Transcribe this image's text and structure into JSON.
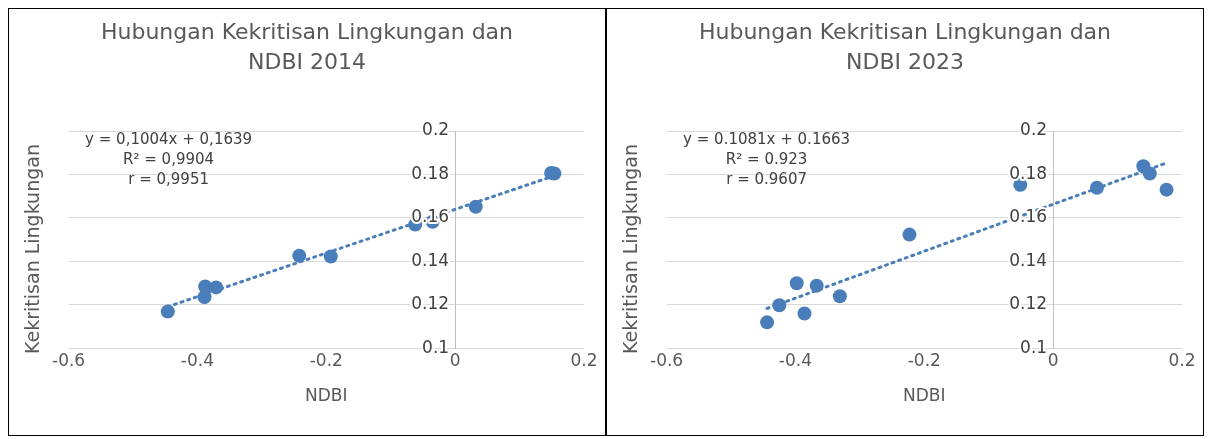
{
  "chart_data": [
    {
      "type": "scatter",
      "title": "Hubungan Kekritisan Lingkungan dan NDBI 2014",
      "xlabel": "NDBI",
      "ylabel": "Kekritisan Lingkungan",
      "annotations": [
        "y = 0,1004x + 0,1639",
        "R² = 0,9904",
        "r = 0,9951"
      ],
      "xlim": [
        -0.6,
        0.2
      ],
      "xticks": [
        -0.6,
        -0.4,
        -0.2,
        0,
        0.2
      ],
      "ylim": [
        0.1,
        0.2
      ],
      "yticks": [
        0.1,
        0.12,
        0.14,
        0.16,
        0.18,
        0.2
      ],
      "grid": "y",
      "legend": false,
      "series": [
        {
          "type": "scatter",
          "color": "#4a7ebb",
          "marker": "circle",
          "x": [
            -0.446,
            -0.388,
            -0.389,
            -0.371,
            -0.242,
            -0.193,
            -0.062,
            -0.035,
            0.032,
            0.149,
            0.154
          ],
          "values": [
            0.1169,
            0.1284,
            0.1235,
            0.128,
            0.1426,
            0.1422,
            0.1569,
            0.1582,
            0.1651,
            0.1807,
            0.1804
          ]
        },
        {
          "type": "line",
          "color": "#4a7ebb",
          "marker": "none",
          "line_style": "dotted",
          "x": [
            -0.446,
            0.154
          ],
          "values": [
            0.1191,
            0.1794
          ]
        }
      ]
    },
    {
      "type": "scatter",
      "title": "Hubungan Kekritisan Lingkungan dan NDBI 2023",
      "xlabel": "NDBI",
      "ylabel": "Kekritisan Lingkungan",
      "annotations": [
        "y = 0.1081x + 0.1663",
        "R² = 0.923",
        "r = 0.9607"
      ],
      "xlim": [
        -0.6,
        0.2
      ],
      "xticks": [
        -0.6,
        -0.4,
        -0.2,
        0,
        0.2
      ],
      "ylim": [
        0.1,
        0.2
      ],
      "yticks": [
        0.1,
        0.12,
        0.14,
        0.16,
        0.18,
        0.2
      ],
      "grid": "y",
      "legend": false,
      "series": [
        {
          "type": "scatter",
          "color": "#4a7ebb",
          "marker": "circle",
          "x": [
            -0.444,
            -0.425,
            -0.398,
            -0.386,
            -0.367,
            -0.331,
            -0.223,
            -0.051,
            0.068,
            0.14,
            0.15,
            0.176
          ],
          "values": [
            0.1119,
            0.1198,
            0.1299,
            0.116,
            0.1288,
            0.1239,
            0.1523,
            0.1752,
            0.1739,
            0.1838,
            0.1804,
            0.173
          ]
        },
        {
          "type": "line",
          "color": "#4a7ebb",
          "marker": "none",
          "line_style": "dotted",
          "x": [
            -0.444,
            0.176
          ],
          "values": [
            0.1183,
            0.1853
          ]
        }
      ]
    }
  ]
}
